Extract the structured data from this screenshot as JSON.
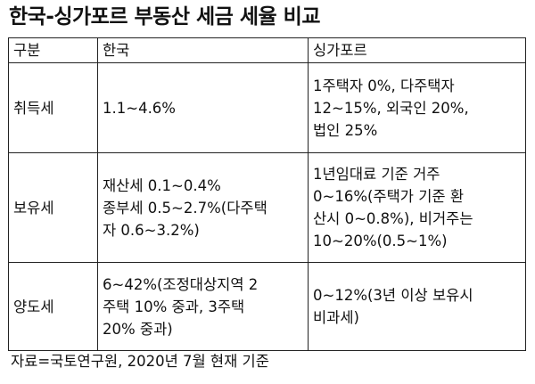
{
  "title": "한국-싱가포르 부동산 세금 세율 비교",
  "table": {
    "headers": [
      "구분",
      "한국",
      "싱가포르"
    ],
    "rows": [
      {
        "category": "취득세",
        "korea": [
          "1.1~4.6%"
        ],
        "singapore": [
          "1주택자 0%, 다주택자",
          "12~15%, 외국인 20%,",
          "법인 25%"
        ]
      },
      {
        "category": "보유세",
        "korea": [
          "재산세 0.1~0.4%",
          "종부세 0.5~2.7%(다주택",
          "자 0.6~3.2%)"
        ],
        "singapore": [
          "1년임대료 기준 거주",
          "0~16%(주택가 기준 환",
          "산시 0~0.8%), 비거주는",
          "10~20%(0.5~1%)"
        ]
      },
      {
        "category": "양도세",
        "korea": [
          "6~42%(조정대상지역 2",
          "주택 10% 중과, 3주택",
          "20% 중과)"
        ],
        "singapore": [
          "0~12%(3년 이상 보유시",
          "비과세)"
        ]
      }
    ]
  },
  "source": "자료=국토연구원, 2020년 7월 현재 기준"
}
